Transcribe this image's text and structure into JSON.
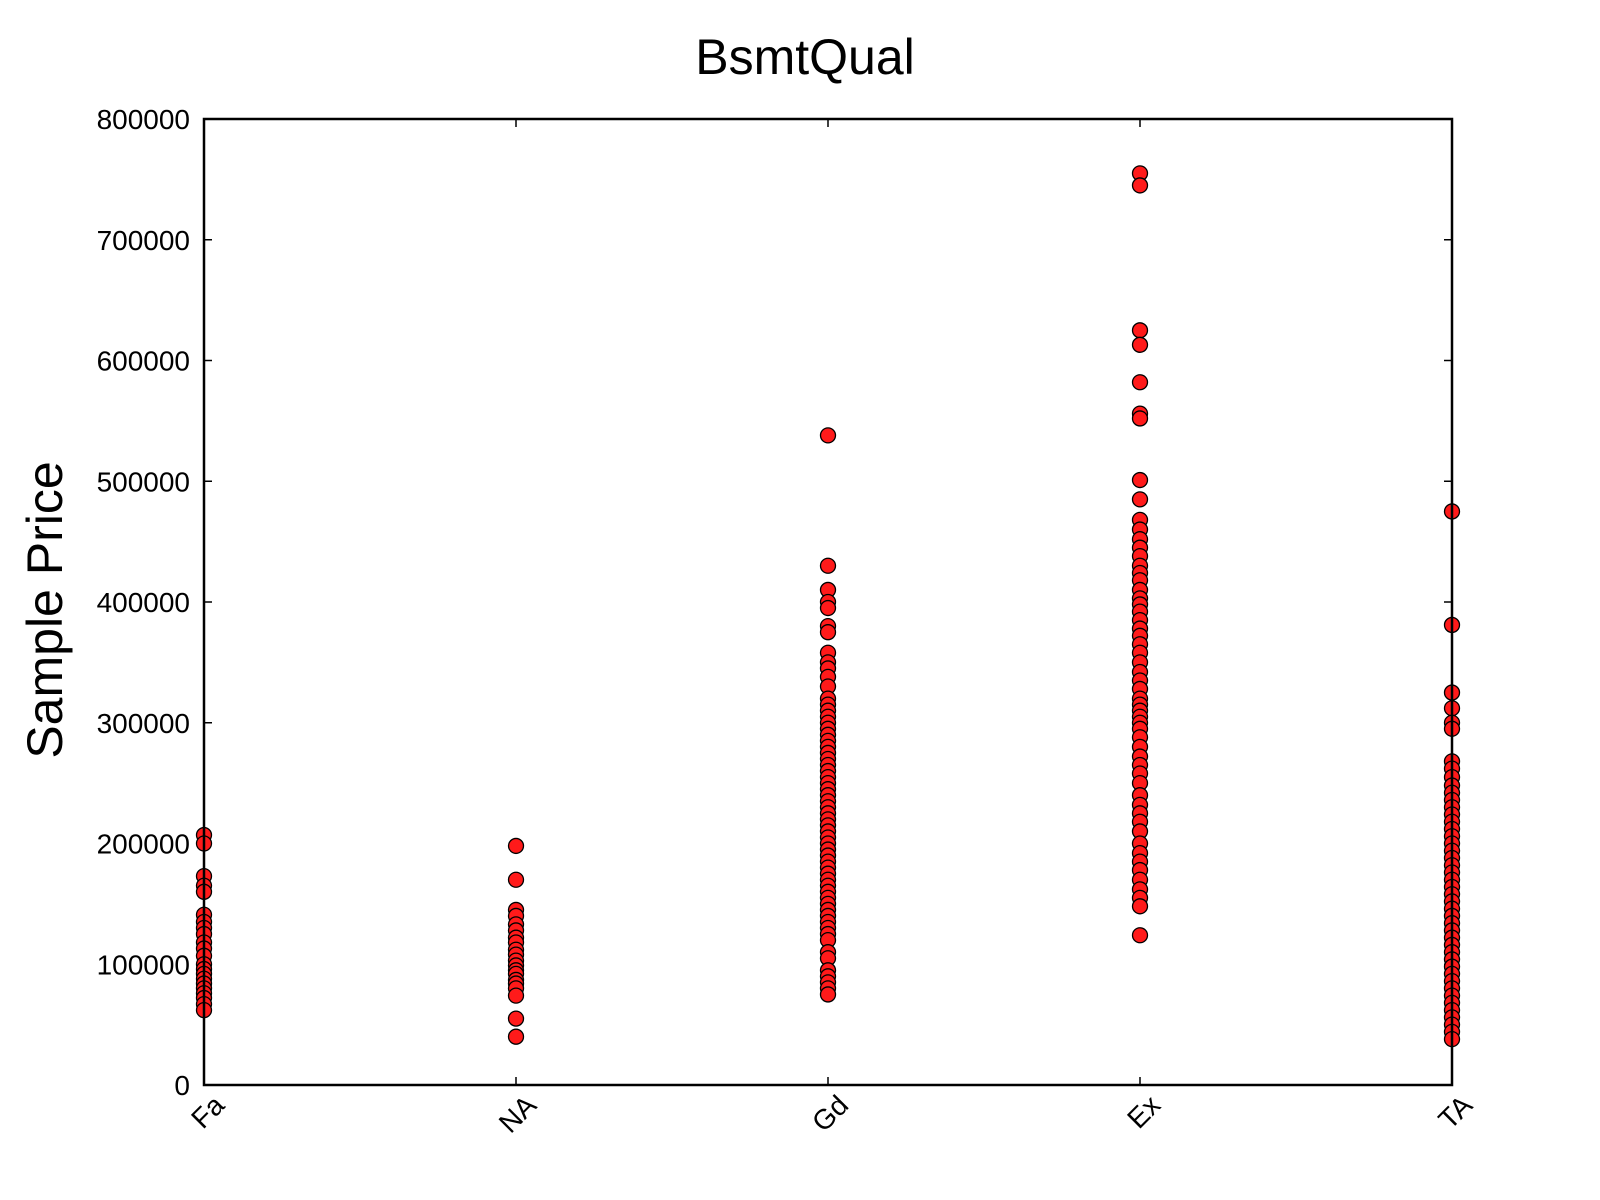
{
  "chart_data": {
    "type": "scatter",
    "title": "BsmtQual",
    "xlabel": "",
    "ylabel": "Sample Price",
    "categories": [
      "Fa",
      "NA",
      "Gd",
      "Ex",
      "TA"
    ],
    "ylim": [
      0,
      800000
    ],
    "yticks": [
      0,
      100000,
      200000,
      300000,
      400000,
      500000,
      600000,
      700000,
      800000
    ],
    "ytick_labels": [
      "0",
      "100000",
      "200000",
      "300000",
      "400000",
      "500000",
      "600000",
      "700000",
      "800000"
    ],
    "grid": false,
    "marker_color": "#ff1a1a",
    "marker_edge_color": "#000000",
    "series": [
      {
        "category": "Fa",
        "values": [
          207000,
          200000,
          173000,
          165000,
          160000,
          141000,
          135000,
          130000,
          125000,
          118000,
          113000,
          107000,
          100000,
          96000,
          92000,
          88000,
          84000,
          80000,
          76000,
          72000,
          67000,
          62000
        ]
      },
      {
        "category": "NA",
        "values": [
          198000,
          170000,
          145000,
          140000,
          133000,
          128000,
          122000,
          118000,
          112000,
          108000,
          103000,
          99000,
          95000,
          92000,
          87000,
          84000,
          80000,
          74000,
          55000,
          40000
        ]
      },
      {
        "category": "Gd",
        "values": [
          538000,
          430000,
          410000,
          400000,
          395000,
          380000,
          375000,
          358000,
          350000,
          345000,
          338000,
          330000,
          320000,
          315000,
          310000,
          305000,
          300000,
          295000,
          290000,
          285000,
          280000,
          275000,
          270000,
          265000,
          260000,
          255000,
          250000,
          245000,
          240000,
          235000,
          230000,
          225000,
          220000,
          215000,
          210000,
          205000,
          200000,
          195000,
          190000,
          185000,
          180000,
          175000,
          170000,
          165000,
          160000,
          155000,
          150000,
          145000,
          140000,
          135000,
          130000,
          125000,
          120000,
          110000,
          105000,
          95000,
          90000,
          85000,
          80000,
          75000
        ]
      },
      {
        "category": "Ex",
        "values": [
          755000,
          745000,
          625000,
          613000,
          582000,
          556000,
          552000,
          501000,
          485000,
          468000,
          460000,
          452000,
          445000,
          438000,
          430000,
          424000,
          418000,
          410000,
          403000,
          398000,
          392000,
          385000,
          378000,
          372000,
          365000,
          358000,
          350000,
          342000,
          335000,
          328000,
          320000,
          315000,
          310000,
          305000,
          300000,
          295000,
          288000,
          280000,
          272000,
          265000,
          258000,
          250000,
          240000,
          232000,
          225000,
          218000,
          210000,
          200000,
          192000,
          185000,
          178000,
          170000,
          162000,
          155000,
          148000,
          124000
        ]
      },
      {
        "category": "TA",
        "values": [
          475000,
          381000,
          325000,
          312000,
          300000,
          295000,
          268000,
          262000,
          255000,
          248000,
          242000,
          236000,
          230000,
          224000,
          218000,
          212000,
          206000,
          200000,
          194000,
          188000,
          182000,
          176000,
          170000,
          164000,
          158000,
          152000,
          146000,
          140000,
          134000,
          128000,
          122000,
          116000,
          110000,
          104000,
          98000,
          92000,
          86000,
          80000,
          74000,
          68000,
          62000,
          56000,
          50000,
          44000,
          38000
        ]
      }
    ]
  }
}
